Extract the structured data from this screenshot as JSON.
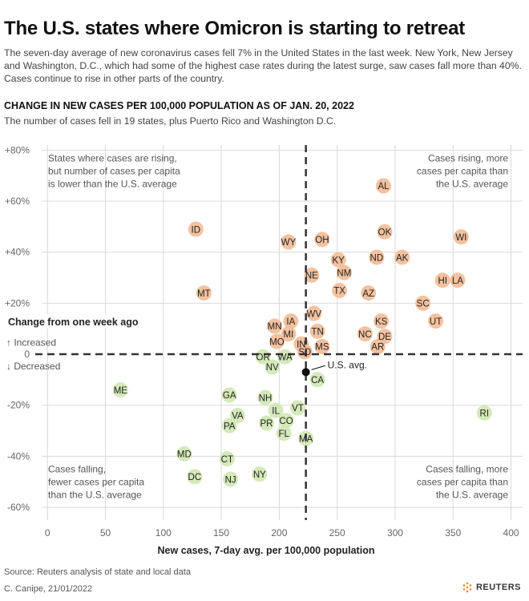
{
  "header": {
    "title": "The U.S. states where Omicron is starting to retreat",
    "intro": "The seven-day average of new coronavirus cases fell 7% in the United States in the last week. New York, New Jersey and Washington, D.C., which had some of the highest case rates during the latest surge, saw cases fall more than 40%. Cases continue to rise in other parts of the country.",
    "subhead": "CHANGE IN NEW CASES PER 100,000 POPULATION AS OF JAN. 20, 2022",
    "subtitle": "The number of cases fell in 19 states, plus Puerto Rico and Washington D.C."
  },
  "footer": {
    "source": "Source: Reuters analysis of state and local data",
    "credit": "C. Canipe, 21/01/2022",
    "brand": "REUTERS"
  },
  "colors": {
    "rising": "#f3bd98",
    "falling": "#d1e7b4",
    "dashed": "#333333",
    "grid": "#d9d9d9"
  },
  "chart_data": {
    "type": "scatter",
    "xlabel": "New cases, 7-day avg. per 100,000 population",
    "ylabel": "Change from one week ago",
    "xlim": [
      -5,
      410
    ],
    "ylim": [
      -65,
      82
    ],
    "x_ticks": [
      0,
      50,
      100,
      150,
      200,
      250,
      300,
      350,
      400
    ],
    "x_tick_labels": [
      "0",
      "50",
      "100",
      "150",
      "200",
      "250",
      "300",
      "350",
      "400"
    ],
    "y_ticks": [
      80,
      60,
      40,
      20,
      0,
      -20,
      -40,
      -60
    ],
    "y_tick_labels": [
      "+80%",
      "+60%",
      "+40%",
      "+20%",
      "0",
      "-20%",
      "-40%",
      "-60%"
    ],
    "reference_lines": {
      "x": 223,
      "y": 0
    },
    "increased_label": "↑ Increased",
    "decreased_label": "↓ Decreased",
    "us_avg": {
      "label": "U.S. avg.",
      "x": 223,
      "y": -7
    },
    "quadrant_labels": [
      {
        "position": "top-left",
        "lines": [
          "States where cases are rising,",
          "but number of cases per capita",
          "is lower than the U.S. average"
        ]
      },
      {
        "position": "top-right",
        "lines": [
          "Cases rising, more",
          "cases per capita than",
          "the U.S. average"
        ]
      },
      {
        "position": "bottom-left",
        "lines": [
          "Cases falling,",
          "fewer cases per capita",
          "than the U.S. average"
        ]
      },
      {
        "position": "bottom-right",
        "lines": [
          "Cases falling, more",
          "cases per capita than",
          "the U.S. average"
        ]
      }
    ],
    "series": [
      {
        "name": "Increased",
        "points": [
          {
            "label": "AL",
            "x": 290,
            "y": 66
          },
          {
            "label": "ID",
            "x": 128,
            "y": 49
          },
          {
            "label": "OH",
            "x": 237,
            "y": 45
          },
          {
            "label": "WY",
            "x": 208,
            "y": 44
          },
          {
            "label": "OK",
            "x": 291,
            "y": 48
          },
          {
            "label": "WI",
            "x": 357,
            "y": 46
          },
          {
            "label": "KY",
            "x": 251,
            "y": 37
          },
          {
            "label": "ND",
            "x": 284,
            "y": 38
          },
          {
            "label": "AK",
            "x": 306,
            "y": 38
          },
          {
            "label": "NM",
            "x": 256,
            "y": 32
          },
          {
            "label": "NE",
            "x": 228,
            "y": 31
          },
          {
            "label": "HI",
            "x": 341,
            "y": 29
          },
          {
            "label": "LA",
            "x": 354,
            "y": 29
          },
          {
            "label": "MT",
            "x": 135,
            "y": 24
          },
          {
            "label": "TX",
            "x": 252,
            "y": 25
          },
          {
            "label": "AZ",
            "x": 277,
            "y": 24
          },
          {
            "label": "SC",
            "x": 324,
            "y": 20
          },
          {
            "label": "WV",
            "x": 230,
            "y": 16
          },
          {
            "label": "UT",
            "x": 335,
            "y": 13
          },
          {
            "label": "IA",
            "x": 210,
            "y": 13
          },
          {
            "label": "KS",
            "x": 288,
            "y": 13
          },
          {
            "label": "MN",
            "x": 196,
            "y": 11
          },
          {
            "label": "TN",
            "x": 233,
            "y": 9
          },
          {
            "label": "MI",
            "x": 208,
            "y": 8
          },
          {
            "label": "NC",
            "x": 274,
            "y": 8
          },
          {
            "label": "DE",
            "x": 291,
            "y": 7
          },
          {
            "label": "MO",
            "x": 198,
            "y": 5
          },
          {
            "label": "IN",
            "x": 219,
            "y": 4
          },
          {
            "label": "AR",
            "x": 285,
            "y": 3
          },
          {
            "label": "MS",
            "x": 237,
            "y": 3
          },
          {
            "label": "SD",
            "x": 222,
            "y": 1
          }
        ]
      },
      {
        "name": "Decreased",
        "points": [
          {
            "label": "OR",
            "x": 186,
            "y": -1
          },
          {
            "label": "WA",
            "x": 205,
            "y": -1
          },
          {
            "label": "NV",
            "x": 194,
            "y": -5
          },
          {
            "label": "CA",
            "x": 233,
            "y": -10
          },
          {
            "label": "ME",
            "x": 63,
            "y": -14
          },
          {
            "label": "GA",
            "x": 157,
            "y": -16
          },
          {
            "label": "NH",
            "x": 188,
            "y": -17
          },
          {
            "label": "RI",
            "x": 377,
            "y": -23
          },
          {
            "label": "VT",
            "x": 216,
            "y": -21
          },
          {
            "label": "IL",
            "x": 197,
            "y": -22
          },
          {
            "label": "VA",
            "x": 164,
            "y": -24
          },
          {
            "label": "CO",
            "x": 206,
            "y": -26
          },
          {
            "label": "PR",
            "x": 189,
            "y": -27
          },
          {
            "label": "PA",
            "x": 157,
            "y": -28
          },
          {
            "label": "FL",
            "x": 204,
            "y": -31
          },
          {
            "label": "MA",
            "x": 223,
            "y": -33
          },
          {
            "label": "MD",
            "x": 118,
            "y": -39
          },
          {
            "label": "CT",
            "x": 155,
            "y": -41
          },
          {
            "label": "NY",
            "x": 183,
            "y": -47
          },
          {
            "label": "DC",
            "x": 127,
            "y": -48
          },
          {
            "label": "NJ",
            "x": 158,
            "y": -49
          }
        ]
      }
    ]
  }
}
